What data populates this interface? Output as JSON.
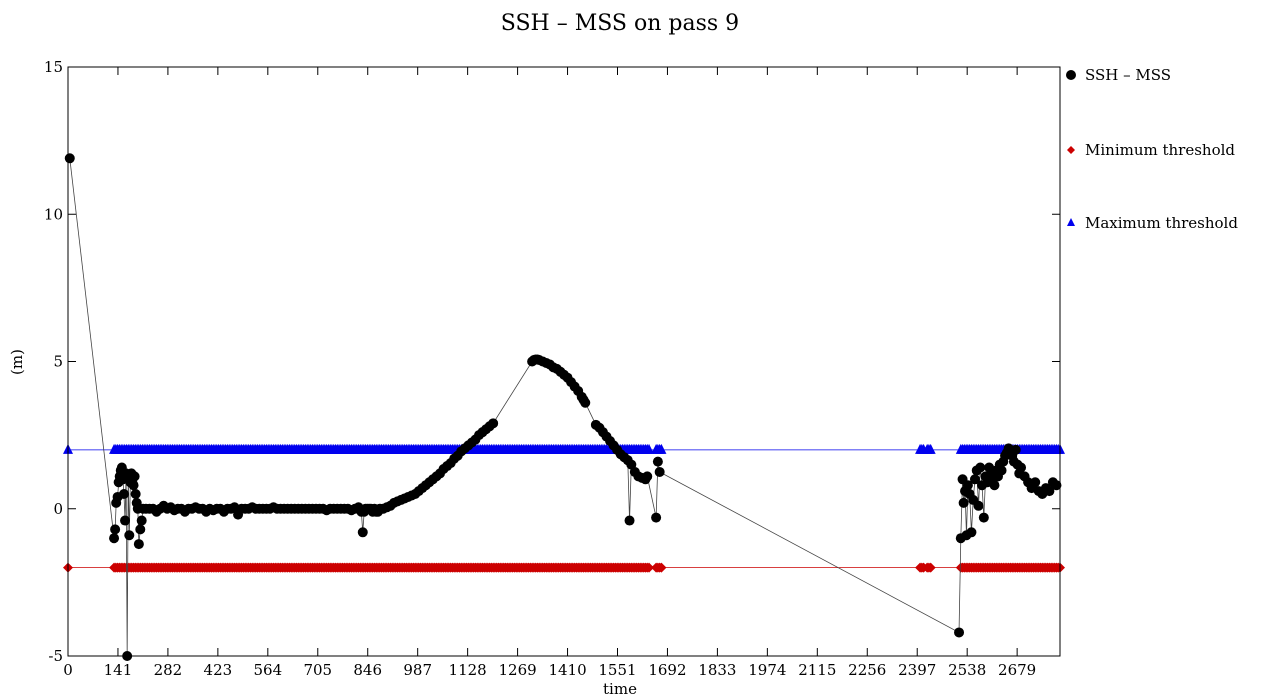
{
  "chart_data": {
    "type": "line",
    "title": "SSH – MSS on pass 9",
    "xlabel": "time",
    "ylabel": "(m)",
    "xlim": [
      0,
      2800
    ],
    "ylim": [
      -5,
      15
    ],
    "xticks": [
      0,
      141,
      282,
      423,
      564,
      705,
      846,
      987,
      1128,
      1269,
      1410,
      1551,
      1692,
      1833,
      1974,
      2115,
      2256,
      2397,
      2538,
      2679
    ],
    "yticks": [
      -5,
      0,
      5,
      10,
      15
    ],
    "grid": false,
    "legend_position": "right",
    "colors": {
      "ssh": "#000000",
      "min": "#cc0000",
      "max": "#0000ee"
    },
    "series": [
      {
        "name": "SSH – MSS",
        "marker": "circle",
        "points": [
          [
            5,
            11.9
          ],
          [
            130,
            -1.0
          ],
          [
            133,
            -0.7
          ],
          [
            136,
            0.2
          ],
          [
            140,
            0.4
          ],
          [
            143,
            0.9
          ],
          [
            146,
            1.1
          ],
          [
            149,
            1.3
          ],
          [
            152,
            1.4
          ],
          [
            155,
            1.0
          ],
          [
            158,
            0.5
          ],
          [
            161,
            -0.4
          ],
          [
            164,
            1.2
          ],
          [
            167,
            -5.0
          ],
          [
            170,
            1.1
          ],
          [
            173,
            -0.9
          ],
          [
            176,
            0.9
          ],
          [
            179,
            1.2
          ],
          [
            182,
            1.0
          ],
          [
            185,
            0.8
          ],
          [
            188,
            1.1
          ],
          [
            191,
            0.5
          ],
          [
            194,
            0.2
          ],
          [
            197,
            0.0
          ],
          [
            200,
            -1.2
          ],
          [
            204,
            -0.7
          ],
          [
            208,
            -0.4
          ],
          [
            212,
            0.0
          ],
          [
            220,
            0.0
          ],
          [
            230,
            0.0
          ],
          [
            240,
            0.0
          ],
          [
            250,
            -0.1
          ],
          [
            260,
            0.0
          ],
          [
            270,
            0.1
          ],
          [
            280,
            0.0
          ],
          [
            290,
            0.05
          ],
          [
            300,
            -0.05
          ],
          [
            310,
            0.0
          ],
          [
            320,
            0.0
          ],
          [
            330,
            -0.1
          ],
          [
            340,
            0.0
          ],
          [
            350,
            0.0
          ],
          [
            360,
            0.05
          ],
          [
            370,
            0.0
          ],
          [
            380,
            0.0
          ],
          [
            390,
            -0.1
          ],
          [
            400,
            0.0
          ],
          [
            410,
            -0.05
          ],
          [
            420,
            0.0
          ],
          [
            430,
            0.0
          ],
          [
            440,
            -0.1
          ],
          [
            450,
            0.0
          ],
          [
            460,
            0.0
          ],
          [
            470,
            0.05
          ],
          [
            480,
            -0.2
          ],
          [
            490,
            0.0
          ],
          [
            500,
            0.0
          ],
          [
            510,
            0.0
          ],
          [
            520,
            0.05
          ],
          [
            530,
            0.0
          ],
          [
            540,
            0.0
          ],
          [
            550,
            0.0
          ],
          [
            560,
            0.0
          ],
          [
            570,
            0.0
          ],
          [
            580,
            0.05
          ],
          [
            590,
            0.0
          ],
          [
            600,
            0.0
          ],
          [
            610,
            0.0
          ],
          [
            620,
            0.0
          ],
          [
            630,
            0.0
          ],
          [
            640,
            0.0
          ],
          [
            650,
            0.0
          ],
          [
            660,
            0.0
          ],
          [
            670,
            0.0
          ],
          [
            680,
            0.0
          ],
          [
            690,
            0.0
          ],
          [
            700,
            0.0
          ],
          [
            710,
            0.0
          ],
          [
            720,
            0.0
          ],
          [
            730,
            -0.05
          ],
          [
            740,
            0.0
          ],
          [
            750,
            0.0
          ],
          [
            760,
            0.0
          ],
          [
            770,
            0.0
          ],
          [
            780,
            0.0
          ],
          [
            790,
            0.0
          ],
          [
            800,
            -0.05
          ],
          [
            810,
            0.0
          ],
          [
            820,
            0.05
          ],
          [
            828,
            -0.1
          ],
          [
            832,
            -0.8
          ],
          [
            836,
            -0.1
          ],
          [
            840,
            0.0
          ],
          [
            845,
            0.0
          ],
          [
            850,
            0.0
          ],
          [
            855,
            0.0
          ],
          [
            860,
            -0.1
          ],
          [
            865,
            0.0
          ],
          [
            870,
            -0.1
          ],
          [
            875,
            -0.1
          ],
          [
            880,
            0.0
          ],
          [
            890,
            0.0
          ],
          [
            900,
            0.05
          ],
          [
            910,
            0.1
          ],
          [
            920,
            0.2
          ],
          [
            930,
            0.25
          ],
          [
            940,
            0.3
          ],
          [
            950,
            0.35
          ],
          [
            960,
            0.4
          ],
          [
            970,
            0.45
          ],
          [
            980,
            0.5
          ],
          [
            990,
            0.6
          ],
          [
            1000,
            0.7
          ],
          [
            1010,
            0.8
          ],
          [
            1020,
            0.9
          ],
          [
            1030,
            1.0
          ],
          [
            1040,
            1.1
          ],
          [
            1050,
            1.2
          ],
          [
            1060,
            1.35
          ],
          [
            1070,
            1.45
          ],
          [
            1080,
            1.55
          ],
          [
            1090,
            1.7
          ],
          [
            1100,
            1.8
          ],
          [
            1110,
            1.95
          ],
          [
            1120,
            2.05
          ],
          [
            1130,
            2.15
          ],
          [
            1140,
            2.25
          ],
          [
            1150,
            2.35
          ],
          [
            1160,
            2.5
          ],
          [
            1170,
            2.6
          ],
          [
            1180,
            2.7
          ],
          [
            1190,
            2.8
          ],
          [
            1200,
            2.9
          ],
          [
            1310,
            5.0
          ],
          [
            1315,
            5.05
          ],
          [
            1320,
            5.07
          ],
          [
            1325,
            5.07
          ],
          [
            1330,
            5.05
          ],
          [
            1340,
            5.0
          ],
          [
            1350,
            4.95
          ],
          [
            1360,
            4.9
          ],
          [
            1370,
            4.8
          ],
          [
            1380,
            4.75
          ],
          [
            1390,
            4.65
          ],
          [
            1400,
            4.55
          ],
          [
            1410,
            4.45
          ],
          [
            1420,
            4.3
          ],
          [
            1430,
            4.15
          ],
          [
            1440,
            4.0
          ],
          [
            1450,
            3.8
          ],
          [
            1455,
            3.7
          ],
          [
            1460,
            3.6
          ],
          [
            1490,
            2.85
          ],
          [
            1500,
            2.75
          ],
          [
            1510,
            2.6
          ],
          [
            1520,
            2.45
          ],
          [
            1530,
            2.3
          ],
          [
            1540,
            2.15
          ],
          [
            1550,
            2.0
          ],
          [
            1560,
            1.85
          ],
          [
            1570,
            1.75
          ],
          [
            1580,
            1.65
          ],
          [
            1585,
            -0.4
          ],
          [
            1590,
            1.5
          ],
          [
            1600,
            1.25
          ],
          [
            1610,
            1.1
          ],
          [
            1620,
            1.05
          ],
          [
            1630,
            1.0
          ],
          [
            1635,
            1.1
          ],
          [
            1660,
            -0.3
          ],
          [
            1665,
            1.6
          ],
          [
            1670,
            1.25
          ],
          [
            2515,
            -4.2
          ],
          [
            2520,
            -1.0
          ],
          [
            2525,
            1.0
          ],
          [
            2528,
            0.2
          ],
          [
            2532,
            0.6
          ],
          [
            2536,
            -0.9
          ],
          [
            2540,
            0.8
          ],
          [
            2545,
            0.5
          ],
          [
            2550,
            -0.8
          ],
          [
            2555,
            0.3
          ],
          [
            2560,
            1.0
          ],
          [
            2565,
            1.3
          ],
          [
            2570,
            0.1
          ],
          [
            2575,
            1.4
          ],
          [
            2580,
            0.8
          ],
          [
            2585,
            -0.3
          ],
          [
            2590,
            1.1
          ],
          [
            2595,
            0.9
          ],
          [
            2600,
            1.4
          ],
          [
            2605,
            1.0
          ],
          [
            2610,
            1.2
          ],
          [
            2615,
            0.8
          ],
          [
            2620,
            1.3
          ],
          [
            2625,
            1.1
          ],
          [
            2630,
            1.5
          ],
          [
            2635,
            1.3
          ],
          [
            2640,
            1.6
          ],
          [
            2645,
            1.8
          ],
          [
            2650,
            1.9
          ],
          [
            2655,
            2.05
          ],
          [
            2660,
            2.0
          ],
          [
            2665,
            1.8
          ],
          [
            2670,
            1.6
          ],
          [
            2675,
            2.0
          ],
          [
            2680,
            1.5
          ],
          [
            2685,
            1.2
          ],
          [
            2690,
            1.4
          ],
          [
            2700,
            1.1
          ],
          [
            2710,
            0.9
          ],
          [
            2720,
            0.7
          ],
          [
            2730,
            0.9
          ],
          [
            2740,
            0.6
          ],
          [
            2750,
            0.5
          ],
          [
            2760,
            0.7
          ],
          [
            2770,
            0.6
          ],
          [
            2780,
            0.9
          ],
          [
            2790,
            0.8
          ]
        ]
      },
      {
        "name": "Minimum threshold",
        "marker": "diamond",
        "constant": -2,
        "segments": [
          [
            0,
            0
          ],
          [
            130,
            1640
          ],
          [
            1660,
            1675
          ],
          [
            2405,
            2415
          ],
          [
            2425,
            2435
          ],
          [
            2520,
            2800
          ]
        ]
      },
      {
        "name": "Maximum threshold",
        "marker": "triangle",
        "constant": 2,
        "segments": [
          [
            0,
            0
          ],
          [
            130,
            1640
          ],
          [
            1660,
            1675
          ],
          [
            2405,
            2415
          ],
          [
            2425,
            2435
          ],
          [
            2520,
            2800
          ]
        ]
      }
    ]
  }
}
